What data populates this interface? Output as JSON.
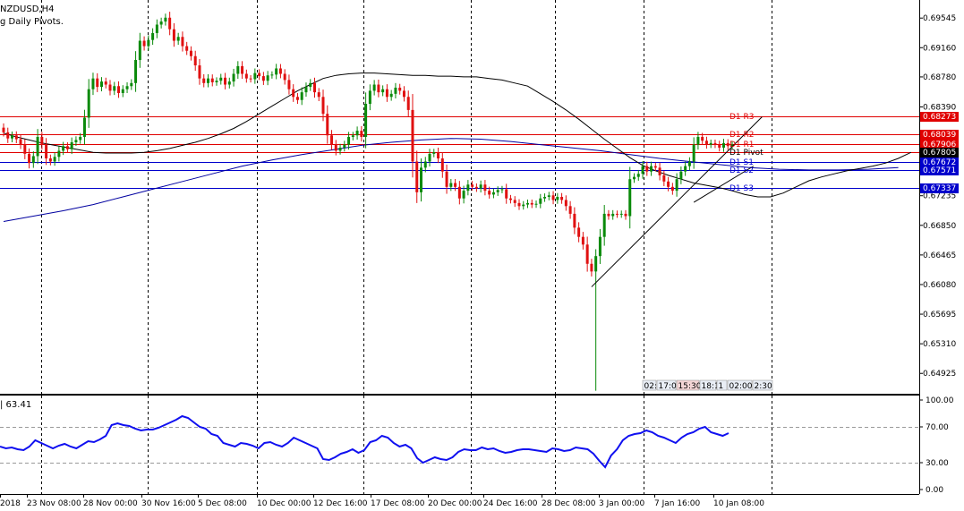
{
  "header": {
    "symbol": "NZDUSD,H4",
    "indicator": "g Daily Pivots."
  },
  "sub_window": {
    "label": "| 63.41"
  },
  "time_boxes": [
    "02:",
    "17:0",
    "15:30",
    "18:1",
    "1",
    "02:00",
    "2:30"
  ],
  "colors": {
    "bull": "#0a8a0a",
    "bear": "#e01010",
    "resistance": "#e00000",
    "support": "#0000cc",
    "ma_slow": "#0000a0",
    "ma_fast": "#000000",
    "rsi": "#1010f0",
    "current_price_bg": "#000000"
  },
  "chart_data": [
    {
      "type": "candlestick",
      "title": "NZDUSD,H4",
      "y_tick_labels": [
        "0.69545",
        "0.69160",
        "0.68780",
        "0.68390",
        "0.68010",
        "0.67615",
        "0.67235",
        "0.66850",
        "0.66465",
        "0.66080",
        "0.65695",
        "0.65310",
        "0.64925"
      ],
      "y_ticks": [
        0.69545,
        0.6916,
        0.6878,
        0.6839,
        0.6801,
        0.67615,
        0.67235,
        0.6685,
        0.66465,
        0.6608,
        0.65695,
        0.6531,
        0.64925
      ],
      "ylim": [
        0.6466,
        0.6978
      ],
      "x_tick_labels": [
        "2018",
        "23 Nov 08:00",
        "28 Nov 00:00",
        "30 Nov 16:00",
        "5 Dec 08:00",
        "10 Dec 00:00",
        "12 Dec 16:00",
        "17 Dec 08:00",
        "20 Dec 00:00",
        "24 Dec 16:00",
        "28 Dec 08:00",
        "3 Jan 00:00",
        "7 Jan 16:00",
        "10 Jan 08:00"
      ],
      "grid": "vertical dashed",
      "pivot_levels": [
        {
          "label": "D1 R3",
          "value": 0.68273,
          "tag": "0.68273",
          "kind": "resistance"
        },
        {
          "label": "D1 R2",
          "value": 0.68039,
          "tag": "0.68039",
          "kind": "resistance"
        },
        {
          "label": "D1 R1",
          "value": 0.67906,
          "tag": "0.67906",
          "kind": "resistance"
        },
        {
          "label": "D1 Pivot",
          "value": 0.67805,
          "tag": "0.67805",
          "kind": "current"
        },
        {
          "label": "D1 S1",
          "value": 0.67672,
          "tag": "0.67672",
          "kind": "support"
        },
        {
          "label": "D1 S2",
          "value": 0.67571,
          "tag": "0.67571",
          "kind": "support"
        },
        {
          "label": "D1 S3",
          "value": 0.67337,
          "tag": "0.67337",
          "kind": "support"
        }
      ],
      "close_series": [
        0.6806,
        0.6798,
        0.6802,
        0.6797,
        0.679,
        0.6778,
        0.6766,
        0.6775,
        0.68,
        0.679,
        0.6772,
        0.6768,
        0.6774,
        0.6782,
        0.6788,
        0.6784,
        0.6793,
        0.6796,
        0.68,
        0.6825,
        0.6862,
        0.6876,
        0.6865,
        0.6872,
        0.6868,
        0.686,
        0.6866,
        0.6857,
        0.6862,
        0.6866,
        0.687,
        0.69,
        0.6925,
        0.6918,
        0.6926,
        0.6935,
        0.6946,
        0.695,
        0.6955,
        0.694,
        0.6925,
        0.693,
        0.6918,
        0.6912,
        0.6905,
        0.6893,
        0.6876,
        0.687,
        0.6876,
        0.6871,
        0.6873,
        0.6877,
        0.6868,
        0.6872,
        0.6882,
        0.6892,
        0.6882,
        0.6876,
        0.6875,
        0.6883,
        0.6879,
        0.6873,
        0.688,
        0.6881,
        0.6889,
        0.6882,
        0.6874,
        0.6862,
        0.6852,
        0.6848,
        0.6858,
        0.6865,
        0.687,
        0.6858,
        0.6852,
        0.683,
        0.6802,
        0.679,
        0.6782,
        0.6786,
        0.679,
        0.68,
        0.6802,
        0.6808,
        0.68,
        0.6843,
        0.686,
        0.6868,
        0.6858,
        0.6862,
        0.6852,
        0.6856,
        0.6864,
        0.686,
        0.6852,
        0.6835,
        0.6768,
        0.6728,
        0.676,
        0.6768,
        0.6778,
        0.678,
        0.6772,
        0.6755,
        0.6735,
        0.674,
        0.6735,
        0.672,
        0.673,
        0.6738,
        0.6735,
        0.6733,
        0.6738,
        0.673,
        0.6725,
        0.6728,
        0.6731,
        0.6732,
        0.672,
        0.6718,
        0.6714,
        0.671,
        0.6712,
        0.6714,
        0.6712,
        0.6713,
        0.672,
        0.6722,
        0.6724,
        0.6718,
        0.6722,
        0.6718,
        0.671,
        0.67,
        0.6682,
        0.667,
        0.666,
        0.6635,
        0.6625,
        0.6645,
        0.667,
        0.67,
        0.6697,
        0.67,
        0.6699,
        0.67,
        0.6697,
        0.6745,
        0.6748,
        0.6752,
        0.6762,
        0.6755,
        0.6762,
        0.676,
        0.675,
        0.6742,
        0.6735,
        0.673,
        0.6745,
        0.6755,
        0.6762,
        0.6768,
        0.679,
        0.68,
        0.6795,
        0.679,
        0.6792,
        0.679,
        0.6786,
        0.6792,
        0.6788,
        0.679
      ],
      "sma_fast": [
        0.6805,
        0.68,
        0.6796,
        0.6792,
        0.6789,
        0.6786,
        0.6783,
        0.678,
        0.6779,
        0.6779,
        0.6779,
        0.678,
        0.6782,
        0.6785,
        0.6789,
        0.6793,
        0.6798,
        0.6804,
        0.6811,
        0.682,
        0.683,
        0.684,
        0.685,
        0.686,
        0.6868,
        0.6876,
        0.688,
        0.6882,
        0.6883,
        0.6883,
        0.6882,
        0.6881,
        0.688,
        0.688,
        0.6879,
        0.6879,
        0.6878,
        0.6878,
        0.6876,
        0.6874,
        0.687,
        0.6866,
        0.6856,
        0.6846,
        0.6835,
        0.6823,
        0.681,
        0.6797,
        0.6785,
        0.6773,
        0.6763,
        0.6756,
        0.675,
        0.6745,
        0.674,
        0.6737,
        0.6734,
        0.673,
        0.6725,
        0.6722,
        0.6722,
        0.6727,
        0.6735,
        0.6743,
        0.6748,
        0.6752,
        0.6756,
        0.6759,
        0.6762,
        0.6766,
        0.6772,
        0.678
      ],
      "sma_fast_x": [
        0,
        3,
        6,
        9,
        12,
        15,
        18,
        21,
        24,
        27,
        30,
        33,
        36,
        39,
        42,
        45,
        48,
        51,
        54,
        57,
        60,
        63,
        66,
        69,
        72,
        75,
        78,
        81,
        84,
        87,
        90,
        93,
        96,
        99,
        102,
        105,
        108,
        111,
        114,
        117,
        120,
        123,
        126,
        129,
        132,
        135,
        138,
        141,
        144,
        147,
        150,
        153,
        156,
        159,
        162,
        165,
        168,
        171,
        174,
        177,
        180,
        183,
        186,
        189,
        192,
        195,
        198,
        201,
        204,
        207,
        210,
        213
      ],
      "sma_slow": [
        0.669,
        0.6697,
        0.6704,
        0.6712,
        0.6722,
        0.6732,
        0.6742,
        0.6752,
        0.6762,
        0.677,
        0.6777,
        0.6783,
        0.6789,
        0.6793,
        0.6796,
        0.6798,
        0.6797,
        0.6794,
        0.679,
        0.6786,
        0.6782,
        0.6777,
        0.6772,
        0.6768,
        0.6764,
        0.676,
        0.6758,
        0.6757,
        0.6757,
        0.6758,
        0.676
      ],
      "sma_slow_x": [
        0,
        7,
        14,
        21,
        28,
        35,
        42,
        49,
        56,
        63,
        70,
        77,
        84,
        91,
        98,
        105,
        112,
        119,
        126,
        133,
        140,
        147,
        154,
        161,
        168,
        175,
        182,
        189,
        196,
        203,
        210
      ],
      "trendlines": [
        {
          "x": [
            138,
            178
          ],
          "y": [
            0.6605,
            0.6826
          ]
        },
        {
          "x": [
            162,
            176
          ],
          "y": [
            0.6715,
            0.6762
          ]
        }
      ],
      "spike_low": {
        "bar": 139,
        "value": 0.647
      }
    },
    {
      "type": "line",
      "title": "| 63.41",
      "ylim": [
        -5,
        105
      ],
      "y_tick_labels": [
        "100.00",
        "70.00",
        "30.00",
        "0.00"
      ],
      "y_ticks": [
        100,
        70,
        30,
        0
      ],
      "reference_lines": [
        70,
        30
      ],
      "values": [
        48,
        46,
        47,
        45,
        44,
        48,
        55,
        52,
        49,
        46,
        49,
        51,
        48,
        46,
        50,
        54,
        53,
        56,
        60,
        72,
        74,
        72,
        71,
        68,
        66,
        67,
        67,
        69,
        72,
        75,
        78,
        82,
        80,
        75,
        70,
        68,
        62,
        60,
        52,
        50,
        48,
        52,
        51,
        49,
        46,
        52,
        53,
        50,
        48,
        52,
        58,
        55,
        52,
        49,
        46,
        34,
        33,
        36,
        40,
        42,
        45,
        41,
        44,
        53,
        55,
        60,
        58,
        52,
        48,
        50,
        46,
        35,
        30,
        33,
        36,
        34,
        33,
        36,
        42,
        45,
        44,
        44,
        47,
        45,
        46,
        43,
        41,
        42,
        44,
        45,
        45,
        44,
        43,
        42,
        46,
        45,
        43,
        44,
        47,
        46,
        45,
        40,
        32,
        25,
        38,
        45,
        55,
        60,
        62,
        63,
        66,
        64,
        60,
        58,
        55,
        52,
        58,
        62,
        64,
        68,
        70,
        64,
        62,
        60,
        63
      ]
    }
  ]
}
